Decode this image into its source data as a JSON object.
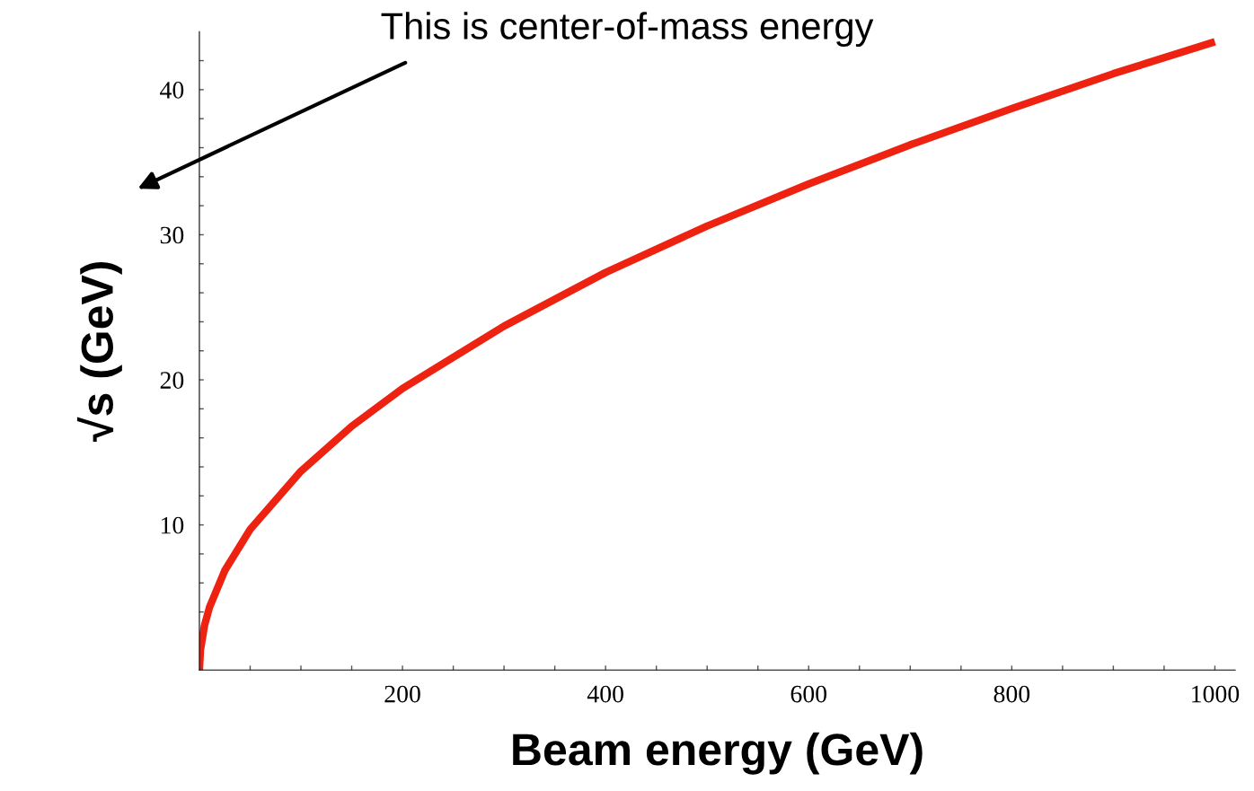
{
  "chart_data": {
    "type": "line",
    "xlabel": "Beam energy (GeV)",
    "ylabel": "√s (GeV)",
    "annotations": [
      "This is center-of-mass energy"
    ],
    "x": [
      0,
      1,
      5,
      10,
      25,
      50,
      100,
      150,
      200,
      300,
      400,
      500,
      600,
      700,
      800,
      900,
      1000
    ],
    "series": [
      {
        "color": "#ee2211",
        "values": [
          0,
          1.37,
          3.06,
          4.33,
          6.85,
          9.69,
          13.7,
          16.8,
          19.4,
          23.7,
          27.4,
          30.6,
          33.5,
          36.2,
          38.7,
          41.1,
          43.3
        ]
      }
    ],
    "xlim": [
      0,
      1020
    ],
    "ylim": [
      0,
      44
    ],
    "xticks": [
      {
        "value": 50,
        "label": null
      },
      200,
      {
        "value": 100,
        "label": null
      },
      {
        "value": 150,
        "label": null
      },
      {
        "value": 250,
        "label": null
      },
      {
        "value": 300,
        "label": null
      },
      {
        "value": 350,
        "label": null
      },
      400,
      {
        "value": 450,
        "label": null
      },
      {
        "value": 500,
        "label": null
      },
      {
        "value": 550,
        "label": null
      },
      600,
      {
        "value": 650,
        "label": null
      },
      {
        "value": 700,
        "label": null
      },
      {
        "value": 750,
        "label": null
      },
      800,
      {
        "value": 850,
        "label": null
      },
      {
        "value": 900,
        "label": null
      },
      {
        "value": 950,
        "label": null
      },
      1000
    ],
    "yticks": [
      {
        "value": 2,
        "label": null
      },
      {
        "value": 4,
        "label": null
      },
      {
        "value": 6,
        "label": null
      },
      {
        "value": 8,
        "label": null
      },
      10,
      {
        "value": 12,
        "label": null
      },
      {
        "value": 14,
        "label": null
      },
      {
        "value": 16,
        "label": null
      },
      {
        "value": 18,
        "label": null
      },
      20,
      {
        "value": 22,
        "label": null
      },
      {
        "value": 24,
        "label": null
      },
      {
        "value": 26,
        "label": null
      },
      {
        "value": 28,
        "label": null
      },
      30,
      {
        "value": 32,
        "label": null
      },
      {
        "value": 34,
        "label": null
      },
      {
        "value": 36,
        "label": null
      },
      {
        "value": 38,
        "label": null
      },
      40,
      {
        "value": 42,
        "label": null
      }
    ],
    "grid": false,
    "legend": false,
    "marker": "none",
    "line_style": "solid"
  }
}
